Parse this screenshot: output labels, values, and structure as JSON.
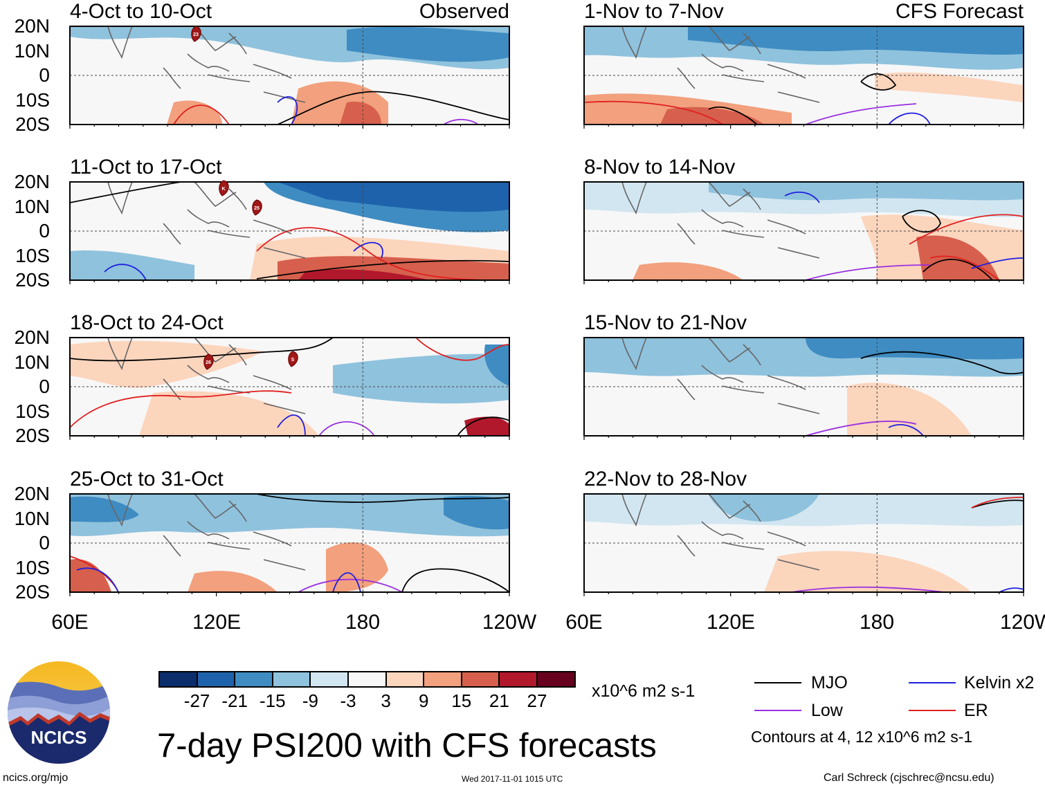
{
  "panels": [
    {
      "title": "4-Oct to 10-Oct",
      "tag": "Observed"
    },
    {
      "title": "11-Oct to 17-Oct",
      "tag": ""
    },
    {
      "title": "18-Oct to 24-Oct",
      "tag": ""
    },
    {
      "title": "25-Oct to 31-Oct",
      "tag": ""
    },
    {
      "title": "1-Nov to 7-Nov",
      "tag": "CFS Forecast"
    },
    {
      "title": "8-Nov to 14-Nov",
      "tag": ""
    },
    {
      "title": "15-Nov to 21-Nov",
      "tag": ""
    },
    {
      "title": "22-Nov to 28-Nov",
      "tag": ""
    }
  ],
  "axes": {
    "lat_labels": [
      "20N",
      "10N",
      "0",
      "10S",
      "20S"
    ],
    "lon_labels": [
      "60E",
      "120E",
      "180",
      "120W"
    ]
  },
  "storm_markers": [
    {
      "panel": 0,
      "label": "23"
    },
    {
      "panel": 1,
      "label": "K"
    },
    {
      "panel": 1,
      "label": "25"
    },
    {
      "panel": 2,
      "label": "26"
    },
    {
      "panel": 2,
      "label": "S"
    }
  ],
  "colorbar": {
    "colors": [
      "#0b2d6b",
      "#1f62ac",
      "#3f8cc2",
      "#8fc2dd",
      "#d2e6f1",
      "#f7f7f7",
      "#fcd5bd",
      "#f2a07d",
      "#d6604d",
      "#b2182b",
      "#67001f"
    ],
    "labels": [
      "-27",
      "-21",
      "-15",
      "-9",
      "-3",
      "3",
      "9",
      "15",
      "21",
      "27"
    ],
    "units": "x10^6 m2 s-1"
  },
  "title": "7-day PSI200 with CFS forecasts",
  "legend": {
    "items": [
      {
        "label": "MJO",
        "color": "#000000"
      },
      {
        "label": "Kelvin x2",
        "color": "#1f1fe0"
      },
      {
        "label": "Low",
        "color": "#9a2fe0"
      },
      {
        "label": "ER",
        "color": "#e01f1f"
      }
    ],
    "contours_note": "Contours at 4, 12 x10^6 m2 s-1"
  },
  "logo": {
    "text": "NCICS"
  },
  "footer": {
    "url": "ncics.org/mjo",
    "timestamp": "Wed 2017-11-01 1015 UTC",
    "credit": "Carl Schreck (cjschrec@ncsu.edu)"
  }
}
